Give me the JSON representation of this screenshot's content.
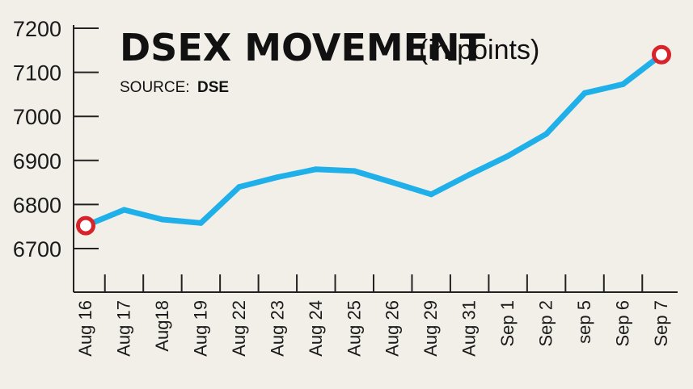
{
  "chart_data": {
    "type": "line",
    "title": "DSEX MOVEMENT",
    "subtitle": "(in points)",
    "source_label": "SOURCE:",
    "source_value": "DSE",
    "categories": [
      "Aug 16",
      "Aug 17",
      "Aug18",
      "Aug 19",
      "Aug 22",
      "Aug 23",
      "Aug 24",
      "Aug 25",
      "Aug 26",
      "Aug 29",
      "Aug 31",
      "Sep 1",
      "Sep 2",
      "sep 5",
      "Sep 6",
      "Sep 7"
    ],
    "values": [
      6752,
      6788,
      6766,
      6758,
      6840,
      6862,
      6880,
      6876,
      6850,
      6823,
      6868,
      6910,
      6960,
      7053,
      7073,
      7140
    ],
    "ylim": [
      6650,
      7200
    ],
    "yticks": [
      6700,
      6800,
      6900,
      7000,
      7100,
      7200
    ],
    "xlabel": "",
    "ylabel": "",
    "grid": false,
    "line_color": "#1fb0ea",
    "marker_color": "#d9232a",
    "highlighted_points": [
      "Aug 16",
      "Sep 7"
    ]
  }
}
